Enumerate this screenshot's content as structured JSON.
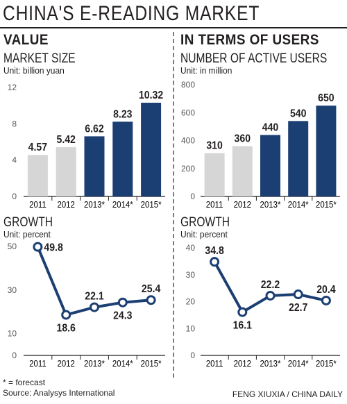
{
  "title": "CHINA'S E-READING MARKET",
  "left": {
    "heading": "VALUE",
    "market": {
      "subtitle": "MARKET SIZE",
      "unit": "Unit: billion yuan"
    },
    "growth": {
      "subtitle": "GROWTH",
      "unit": "Unit: percent"
    }
  },
  "right": {
    "heading": "IN TERMS OF USERS",
    "users": {
      "subtitle": "NUMBER OF ACTIVE USERS",
      "unit": "Unit: in million"
    },
    "growth": {
      "subtitle": "GROWTH",
      "unit": "Unit: percent"
    }
  },
  "footnote": "* = forecast",
  "source": "Source: Analysys International",
  "credit": "FENG XIUXIA / CHINA DAILY",
  "colors": {
    "actual": "#d6d6d6",
    "forecast": "#1c3f73",
    "line": "#1c3f73",
    "text": "#231f20"
  },
  "chart_data": [
    {
      "id": "market-size",
      "type": "bar",
      "title": "MARKET SIZE",
      "unit": "Unit: billion yuan",
      "categories": [
        "2011",
        "2012",
        "2013*",
        "2014*",
        "2015*"
      ],
      "values": [
        4.57,
        5.42,
        6.62,
        8.23,
        10.32
      ],
      "labels": [
        "4.57",
        "5.42",
        "6.62",
        "8.23",
        "10.32"
      ],
      "forecast": [
        false,
        false,
        true,
        true,
        true
      ],
      "ylim": [
        0,
        12
      ],
      "yticks": [
        0,
        4,
        8,
        12
      ]
    },
    {
      "id": "active-users",
      "type": "bar",
      "title": "NUMBER OF ACTIVE USERS",
      "unit": "Unit: in million",
      "categories": [
        "2011",
        "2012",
        "2013*",
        "2014*",
        "2015*"
      ],
      "values": [
        310,
        360,
        440,
        540,
        650
      ],
      "labels": [
        "310",
        "360",
        "440",
        "540",
        "650"
      ],
      "forecast": [
        false,
        false,
        true,
        true,
        true
      ],
      "ylim": [
        0,
        800
      ],
      "yticks": [
        0,
        200,
        400,
        600,
        800
      ]
    },
    {
      "id": "value-growth",
      "type": "line",
      "title": "GROWTH",
      "unit": "Unit: percent",
      "categories": [
        "2011",
        "2012",
        "2013*",
        "2014*",
        "2015*"
      ],
      "values": [
        49.8,
        18.6,
        22.1,
        24.3,
        25.4
      ],
      "labels": [
        "49.8",
        "18.6",
        "22.1",
        "24.3",
        "25.4"
      ],
      "label_pos": [
        "right",
        "below",
        "above",
        "below",
        "above"
      ],
      "ylim": [
        0,
        50
      ],
      "yticks": [
        0,
        10,
        30,
        50
      ]
    },
    {
      "id": "users-growth",
      "type": "line",
      "title": "GROWTH",
      "unit": "Unit: percent",
      "categories": [
        "2011",
        "2012",
        "2013*",
        "2014*",
        "2015*"
      ],
      "values": [
        34.8,
        16.1,
        22.2,
        22.7,
        20.4
      ],
      "labels": [
        "34.8",
        "16.1",
        "22.2",
        "22.7",
        "20.4"
      ],
      "label_pos": [
        "above",
        "below",
        "above",
        "below",
        "above"
      ],
      "ylim": [
        0,
        40
      ],
      "yticks": [
        0,
        10,
        20,
        30,
        40
      ]
    }
  ]
}
